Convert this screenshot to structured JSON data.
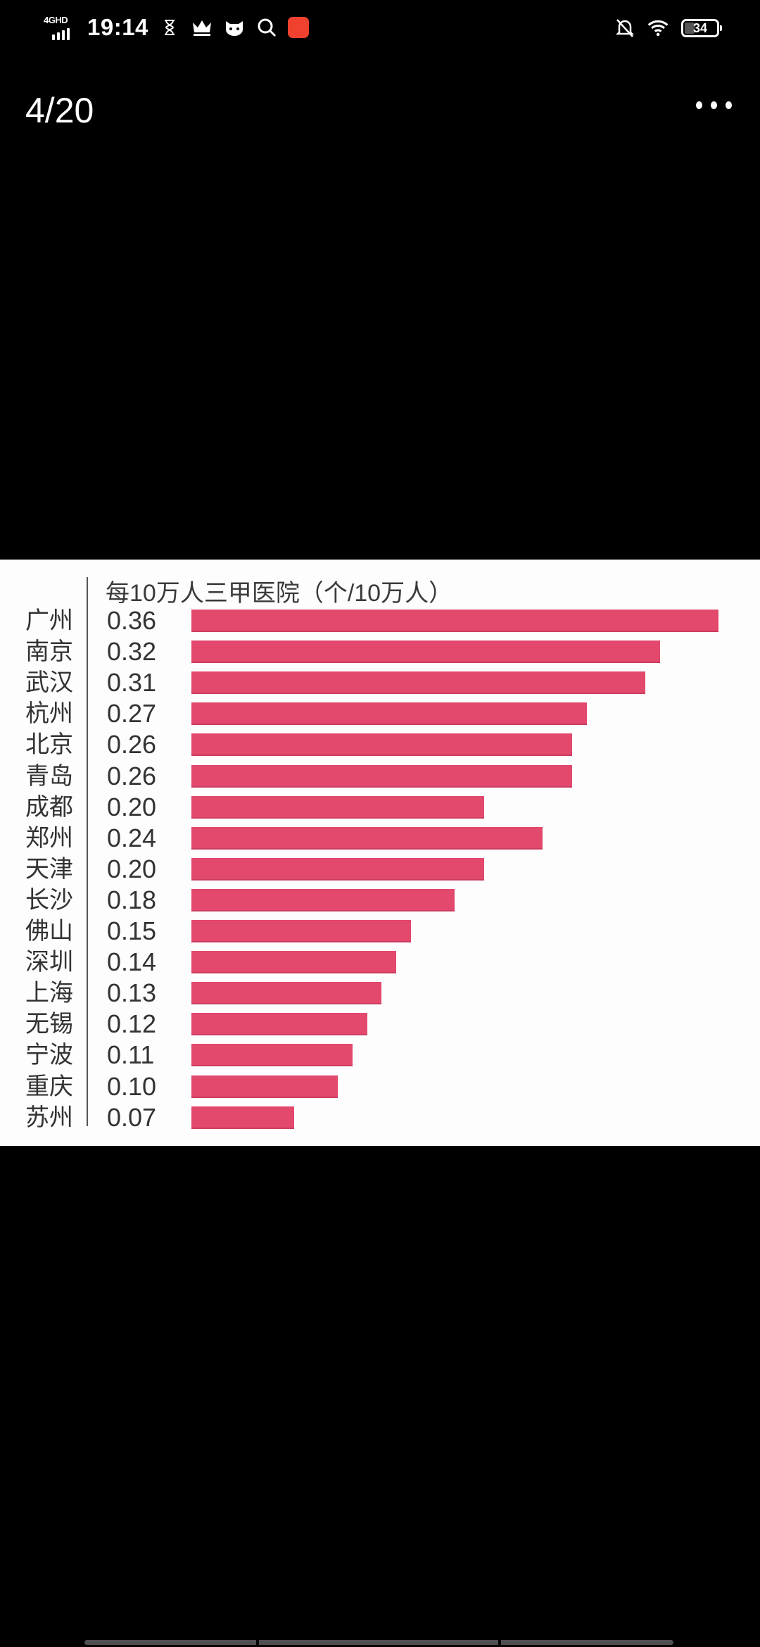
{
  "status_bar": {
    "network": "4GHD",
    "time": "19:14",
    "icons_left": [
      "hourglass-icon",
      "crown-icon",
      "cat-face-icon",
      "search-icon",
      "kuaishou-app-icon"
    ],
    "icons_right": [
      "bell-off-icon",
      "wifi-icon",
      "battery-icon"
    ],
    "battery_level": "34"
  },
  "viewer": {
    "page_counter": "4/20",
    "more_menu_icon": "more-dots-icon"
  },
  "chart_data": {
    "type": "bar",
    "orientation": "horizontal",
    "title": "每10万人三甲医院（个/10万人）",
    "xlabel": "",
    "ylabel": "",
    "bar_color": "#e3486d",
    "grid": false,
    "legend": null,
    "categories": [
      "广州",
      "南京",
      "武汉",
      "杭州",
      "北京",
      "青岛",
      "成都",
      "郑州",
      "天津",
      "长沙",
      "佛山",
      "深圳",
      "上海",
      "无锡",
      "宁波",
      "重庆",
      "苏州"
    ],
    "values": [
      0.36,
      0.32,
      0.31,
      0.27,
      0.26,
      0.26,
      0.2,
      0.24,
      0.2,
      0.18,
      0.15,
      0.14,
      0.13,
      0.12,
      0.11,
      0.1,
      0.07
    ],
    "value_labels": [
      "0.36",
      "0.32",
      "0.31",
      "0.27",
      "0.26",
      "0.26",
      "0.20",
      "0.24",
      "0.20",
      "0.18",
      "0.15",
      "0.14",
      "0.13",
      "0.12",
      "0.11",
      "0.10",
      "0.07"
    ]
  }
}
